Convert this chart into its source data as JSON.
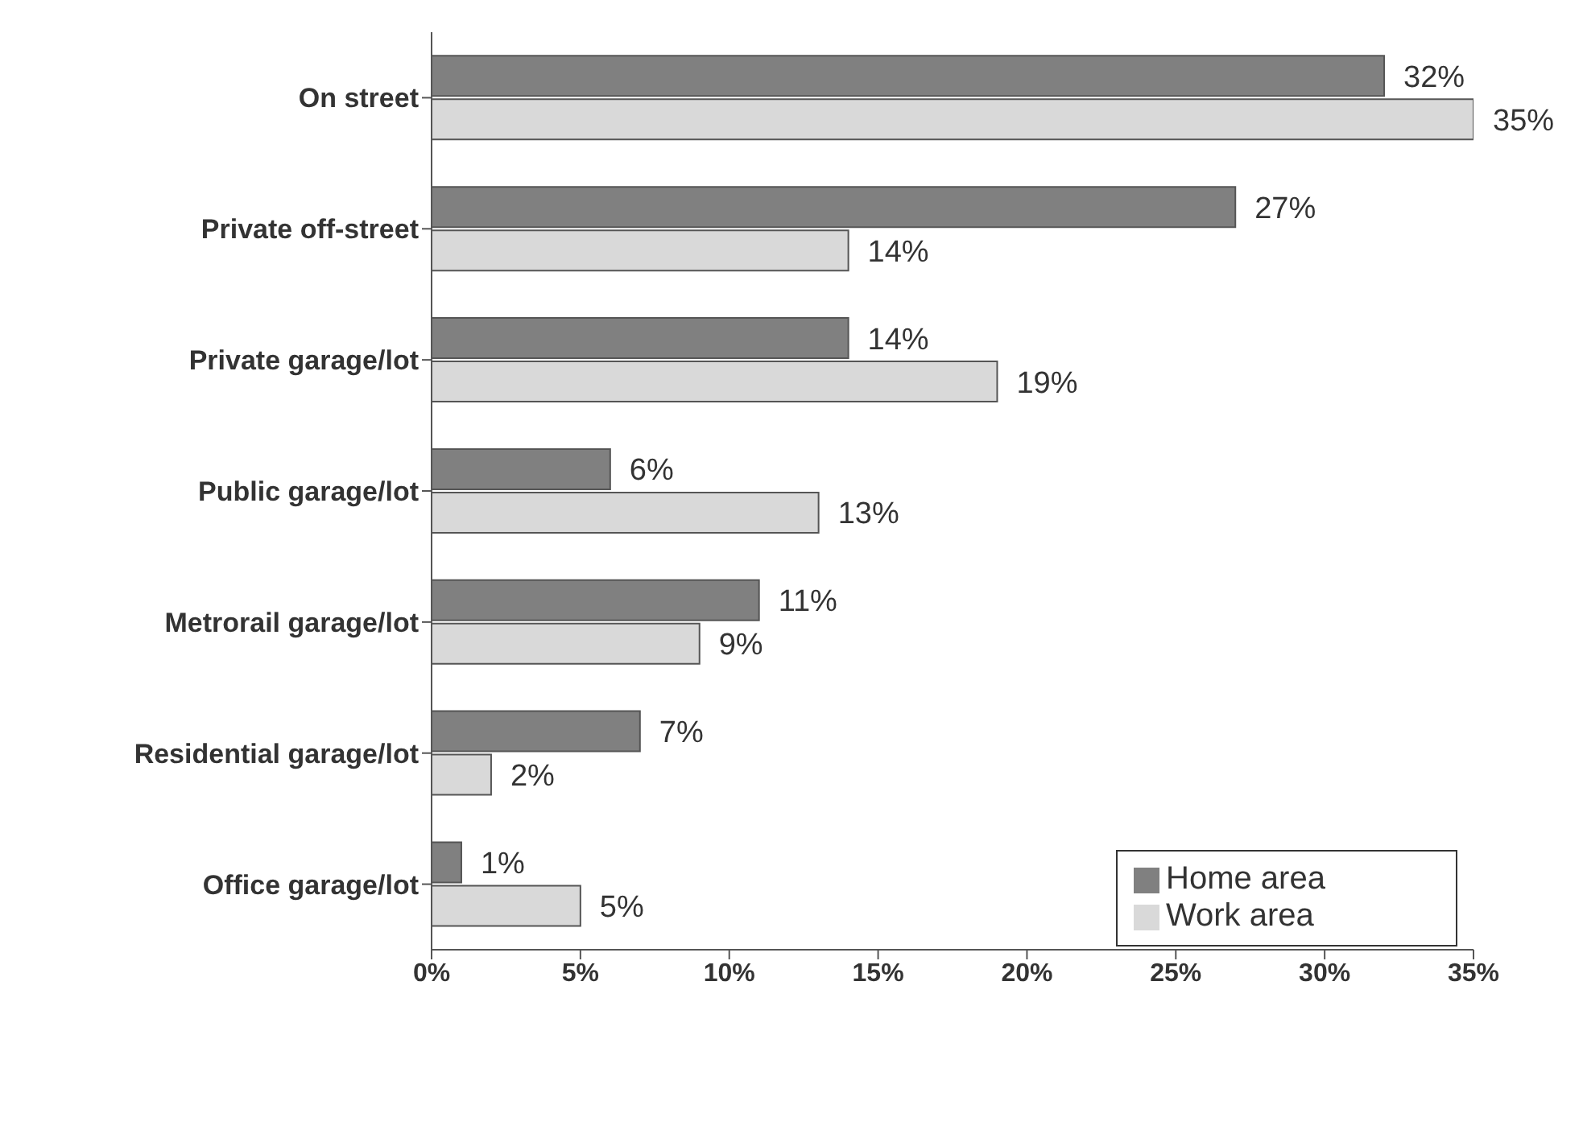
{
  "chart_data": {
    "type": "bar",
    "orientation": "horizontal",
    "categories": [
      "On street",
      "Private off-street",
      "Private garage/lot",
      "Public garage/lot",
      "Metrorail garage/lot",
      "Residential garage/lot",
      "Office garage/lot"
    ],
    "series": [
      {
        "name": "Home area",
        "color": "#808080",
        "values": [
          32,
          27,
          14,
          6,
          11,
          7,
          1
        ],
        "value_labels": [
          "32%",
          "27%",
          "14%",
          "6%",
          "11%",
          "7%",
          "1%"
        ]
      },
      {
        "name": "Work area",
        "color": "#d9d9d9",
        "values": [
          35,
          14,
          19,
          13,
          9,
          2,
          5
        ],
        "value_labels": [
          "35%",
          "14%",
          "19%",
          "13%",
          "9%",
          "2%",
          "5%"
        ]
      }
    ],
    "xlim": [
      0,
      35
    ],
    "xticks": [
      {
        "value": 0,
        "label": "0%"
      },
      {
        "value": 5,
        "label": "5%"
      },
      {
        "value": 10,
        "label": "10%"
      },
      {
        "value": 15,
        "label": "15%"
      },
      {
        "value": 20,
        "label": "20%"
      },
      {
        "value": 25,
        "label": "25%"
      },
      {
        "value": 30,
        "label": "30%"
      },
      {
        "value": 35,
        "label": "35%"
      }
    ],
    "grid": false,
    "legend": "bottom right"
  }
}
